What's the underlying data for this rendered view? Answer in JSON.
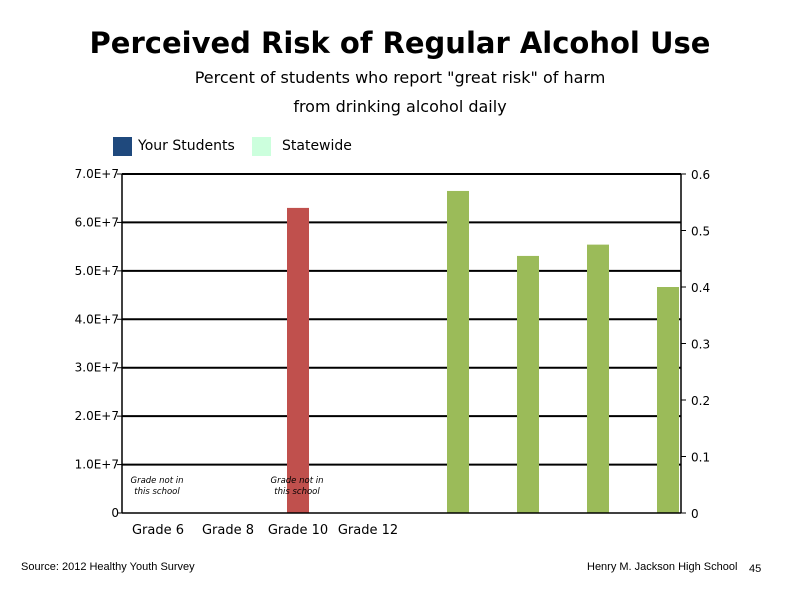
{
  "chart_data": {
    "type": "bar",
    "title": "Perceived Risk of Regular Alcohol Use",
    "subtitle_lines": [
      "Percent of students who report \"great risk\" of harm",
      "from drinking alcohol daily"
    ],
    "legend": [
      {
        "name": "Your Students",
        "color": "#1F497D"
      },
      {
        "name": "Statewide",
        "color": "#CCFFDD"
      }
    ],
    "legend_placement": "top-left",
    "categories": [
      "Grade 6",
      "Grade 8",
      "Grade 10",
      "Grade 12"
    ],
    "left_axis": {
      "ylim": [
        0,
        70000000
      ],
      "ticks": [
        {
          "value": 0,
          "label": "0"
        },
        {
          "value": 10000000,
          "label": "1.0E+7"
        },
        {
          "value": 20000000,
          "label": "2.0E+7"
        },
        {
          "value": 30000000,
          "label": "3.0E+7"
        },
        {
          "value": 40000000,
          "label": "4.0E+7"
        },
        {
          "value": 50000000,
          "label": "5.0E+7"
        },
        {
          "value": 60000000,
          "label": "6.0E+7"
        },
        {
          "value": 70000000,
          "label": "7.0E+7"
        }
      ]
    },
    "right_axis": {
      "ylim": [
        0,
        0.6
      ],
      "ticks": [
        {
          "value": 0,
          "label": "0"
        },
        {
          "value": 0.1,
          "label": "0.1"
        },
        {
          "value": 0.2,
          "label": "0.2"
        },
        {
          "value": 0.3,
          "label": "0.3"
        },
        {
          "value": 0.4,
          "label": "0.4"
        },
        {
          "value": 0.5,
          "label": "0.5"
        },
        {
          "value": 0.6,
          "label": "0.6"
        }
      ]
    },
    "grid": true,
    "bars": [
      {
        "axis": "left",
        "value": 63000000,
        "color": "#C0504D"
      },
      {
        "axis": "right",
        "value": 0.57,
        "color": "#9BBB59"
      },
      {
        "axis": "right",
        "value": 0.455,
        "color": "#9BBB59"
      },
      {
        "axis": "right",
        "value": 0.475,
        "color": "#9BBB59"
      },
      {
        "axis": "right",
        "value": 0.4,
        "color": "#9BBB59"
      }
    ],
    "annotations": [
      {
        "text_lines": [
          "Grade not in",
          "this school"
        ],
        "category": "Grade 6"
      },
      {
        "text_lines": [
          "Grade not in",
          "this school"
        ],
        "category": "Grade 10"
      }
    ]
  },
  "footer": {
    "source": "Source: 2012 Healthy Youth Survey",
    "school": "Henry M. Jackson High School",
    "page_number": "45"
  }
}
